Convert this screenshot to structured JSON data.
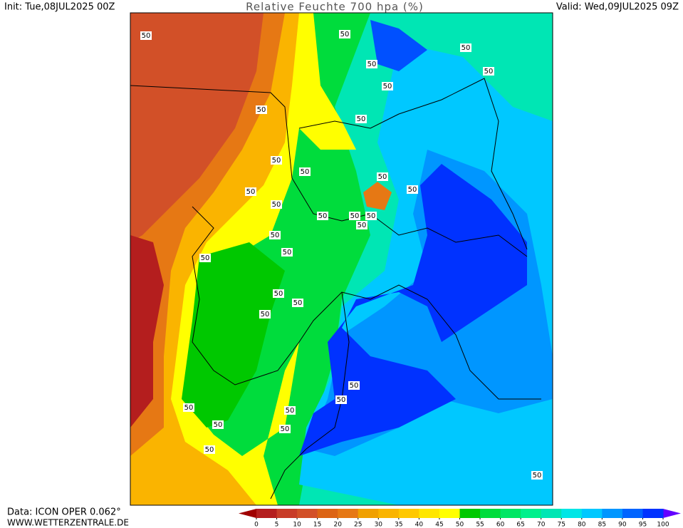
{
  "header": {
    "init": "Init: Tue,08JUL2025 00Z",
    "title": "Relative Feuchte 700 hpa (%)",
    "valid": "Valid: Wed,09JUL2025 09Z"
  },
  "footer": {
    "data": "Data: ICON OPER 0.062°",
    "site": "WWW.WETTERZENTRALE.DE"
  },
  "contour_labels": [
    "50",
    "50",
    "50",
    "50",
    "50",
    "50",
    "50",
    "50",
    "50",
    "50",
    "50",
    "50",
    "50",
    "50",
    "50",
    "50",
    "50",
    "50",
    "50",
    "50",
    "50",
    "50",
    "50",
    "50",
    "50",
    "50",
    "50",
    "50",
    "50",
    "50",
    "50",
    "50"
  ],
  "colorbar": {
    "below_color": "#a00000",
    "above_color": "#6400ff",
    "colors": [
      "#b41e1e",
      "#c83c28",
      "#d25028",
      "#dc6414",
      "#e67814",
      "#f0a000",
      "#fab400",
      "#ffc800",
      "#ffe600",
      "#ffff00",
      "#00c800",
      "#00dc3c",
      "#00e664",
      "#00f08c",
      "#00e6b4",
      "#00e6e6",
      "#00c8ff",
      "#0096ff",
      "#0064ff",
      "#0032ff"
    ],
    "ticks": [
      0,
      5,
      10,
      15,
      20,
      25,
      30,
      35,
      40,
      45,
      50,
      55,
      60,
      65,
      70,
      75,
      80,
      85,
      90,
      95,
      100
    ]
  }
}
